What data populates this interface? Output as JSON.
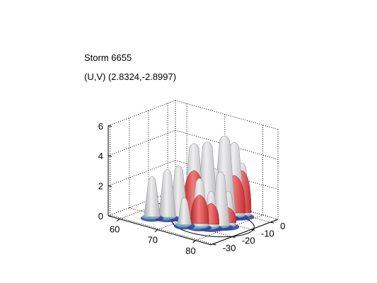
{
  "chart_data": {
    "type": "surface3d",
    "title_lines": [
      "Storm 6655",
      "(U,V) (2.8324,-2.8997)"
    ],
    "xlabel": "",
    "ylabel": "",
    "zlabel": "",
    "x_axis": {
      "ticks": [
        60,
        70,
        80
      ],
      "range": [
        57,
        84
      ]
    },
    "y_axis": {
      "ticks": [
        0,
        -10,
        -20,
        -30
      ],
      "range": [
        -31,
        4
      ]
    },
    "z_axis": {
      "ticks": [
        0,
        2,
        4,
        6
      ],
      "range": [
        0,
        6
      ]
    },
    "grid": true,
    "grid_style": "dotted",
    "colors": {
      "upper_isosurface": "#d9d9db",
      "core_isosurface": "#d23a3a",
      "base_low": "#2f3f9c",
      "base_mid": "#5fb6c8",
      "base_high": "#8ac66a"
    },
    "isosurface_columns": [
      {
        "x": 64,
        "y": -22,
        "top": 2.7,
        "core": 0
      },
      {
        "x": 66.5,
        "y": -19,
        "top": 3.2,
        "core": 0
      },
      {
        "x": 68,
        "y": -16,
        "top": 3.4,
        "core": 0
      },
      {
        "x": 71,
        "y": -14,
        "top": 5.0,
        "core": 3.2
      },
      {
        "x": 73,
        "y": -11,
        "top": 5.1,
        "core": 0
      },
      {
        "x": 74,
        "y": -9,
        "top": 3.3,
        "core": 0
      },
      {
        "x": 75,
        "y": -6,
        "top": 5.4,
        "core": 0
      },
      {
        "x": 76,
        "y": -3,
        "top": 4.9,
        "core": 2.7
      },
      {
        "x": 77,
        "y": -1,
        "top": 3.5,
        "core": 3.0
      },
      {
        "x": 72,
        "y": -21,
        "top": 1.8,
        "core": 0
      },
      {
        "x": 75,
        "y": -19,
        "top": 3.2,
        "core": 2.1
      },
      {
        "x": 77,
        "y": -17,
        "top": 2.4,
        "core": 1.6
      },
      {
        "x": 78,
        "y": -14,
        "top": 3.6,
        "core": 0
      },
      {
        "x": 79,
        "y": -12,
        "top": 2.3,
        "core": 1.2
      }
    ],
    "ground_ellipse": {
      "cx": 76,
      "cy": -14,
      "rx": 9,
      "ry": 12
    }
  }
}
